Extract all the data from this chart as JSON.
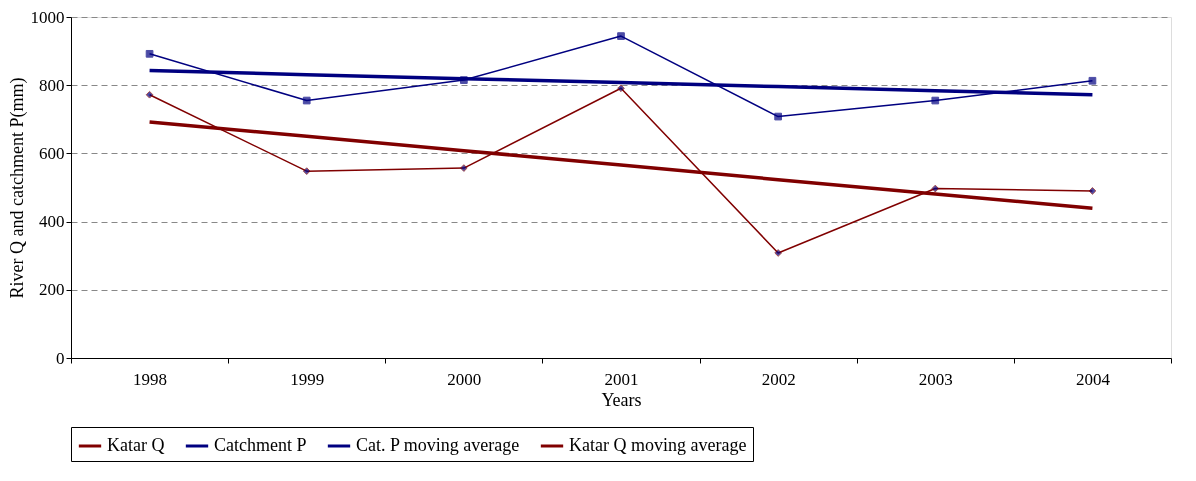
{
  "chart_data": {
    "type": "line",
    "xlabel": "Years",
    "ylabel": "River Q and catchment P(mm)",
    "categories": [
      "1998",
      "1999",
      "2000",
      "2001",
      "2002",
      "2003",
      "2004"
    ],
    "series": [
      {
        "name": "Katar Q",
        "color": "#800000",
        "marker": "diamond",
        "values": [
          772,
          548,
          557,
          791,
          308,
          497,
          490
        ]
      },
      {
        "name": "Catchment P",
        "color": "#000080",
        "marker": "square",
        "values": [
          892,
          755,
          815,
          944,
          708,
          755,
          813
        ]
      },
      {
        "name": "Cat. P moving average",
        "color": "#000080",
        "marker": "none",
        "values": [
          843,
          831,
          819,
          808,
          796,
          784,
          772
        ]
      },
      {
        "name": "Katar Q moving average",
        "color": "#800000",
        "marker": "none",
        "values": [
          692,
          650,
          608,
          566,
          523,
          481,
          439
        ]
      }
    ],
    "ylim": [
      0,
      1000
    ],
    "yticks": [
      0,
      200,
      400,
      600,
      800,
      1000
    ],
    "grid": "y",
    "legend": "bottom",
    "line_style": "solid"
  }
}
